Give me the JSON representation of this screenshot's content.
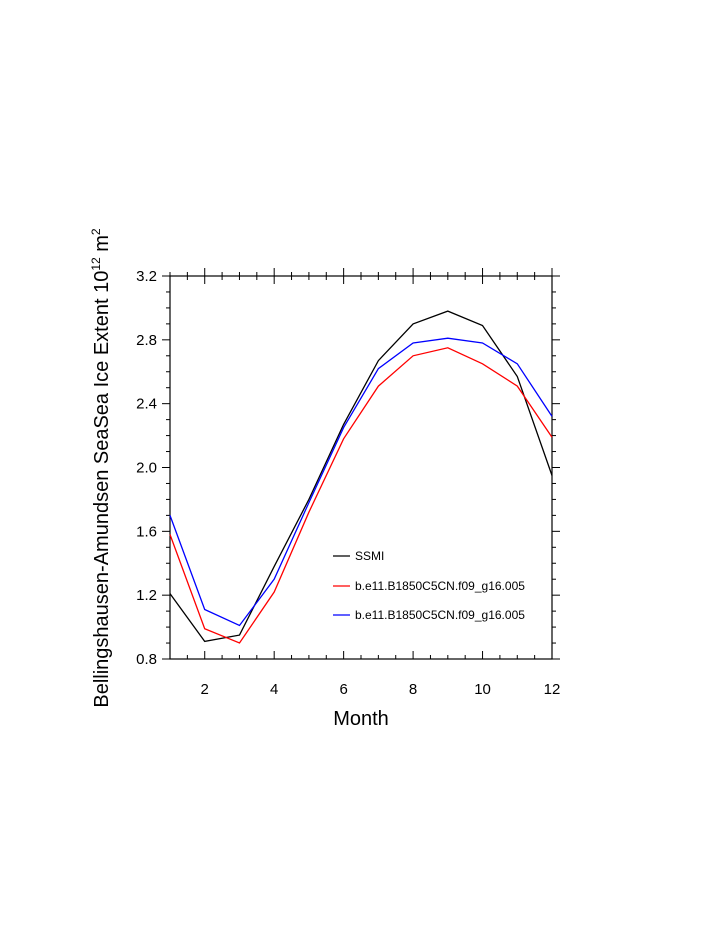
{
  "chart_data": {
    "type": "line",
    "xlabel": "Month",
    "ylabel": "Bellingshausen-Amundsen SeaSea Ice Extent 10",
    "ylabel_exp": "12",
    "ylabel_unit": " m",
    "ylabel_unit_exp": "2",
    "x": [
      1,
      2,
      3,
      4,
      5,
      6,
      7,
      8,
      9,
      10,
      11,
      12
    ],
    "xlim": [
      1,
      12
    ],
    "ylim": [
      0.8,
      3.2
    ],
    "xticks": [
      2,
      4,
      6,
      8,
      10,
      12
    ],
    "xtick_labels": [
      "2",
      "4",
      "6",
      "8",
      "10",
      "12"
    ],
    "yticks": [
      0.8,
      1.2,
      1.6,
      2.0,
      2.4,
      2.8,
      3.2
    ],
    "ytick_labels": [
      "0.8",
      "1.2",
      "1.6",
      "2.0",
      "2.4",
      "2.8",
      "3.2"
    ],
    "grid": false,
    "legend_position": "center-right",
    "series": [
      {
        "name": "SSMI",
        "color": "#000000",
        "values": [
          1.21,
          0.91,
          0.95,
          1.38,
          1.8,
          2.27,
          2.67,
          2.9,
          2.98,
          2.89,
          2.57,
          1.95
        ]
      },
      {
        "name": "b.e11.B1850C5CN.f09_g16.005",
        "color": "#ff0000",
        "values": [
          1.58,
          0.99,
          0.9,
          1.22,
          1.72,
          2.18,
          2.51,
          2.7,
          2.75,
          2.65,
          2.51,
          2.19
        ]
      },
      {
        "name": "b.e11.B1850C5CN.f09_g16.005",
        "color": "#0000ff",
        "values": [
          1.7,
          1.11,
          1.01,
          1.3,
          1.78,
          2.25,
          2.62,
          2.78,
          2.81,
          2.78,
          2.65,
          2.32
        ]
      }
    ]
  }
}
